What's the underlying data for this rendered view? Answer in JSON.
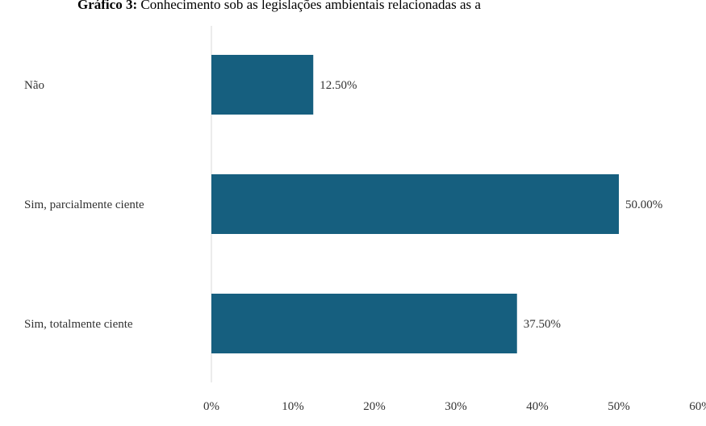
{
  "title": {
    "prefix": "Gráfico 3:",
    "text": " Conhecimento sob as legislações ambientais relacionadas as a"
  },
  "chart_data": {
    "type": "bar",
    "orientation": "horizontal",
    "categories": [
      "Não",
      "Sim, parcialmente ciente",
      "Sim, totalmente ciente"
    ],
    "values": [
      12.5,
      50.0,
      37.5
    ],
    "value_labels": [
      "12.50%",
      "50.00%",
      "37.50%"
    ],
    "x_ticks": [
      "0%",
      "10%",
      "20%",
      "30%",
      "40%",
      "50%",
      "60%"
    ],
    "xlim": [
      0,
      60
    ],
    "bar_color": "#165f7f",
    "axis_color": "#d9d9d9",
    "grid": false,
    "legend": "none"
  }
}
